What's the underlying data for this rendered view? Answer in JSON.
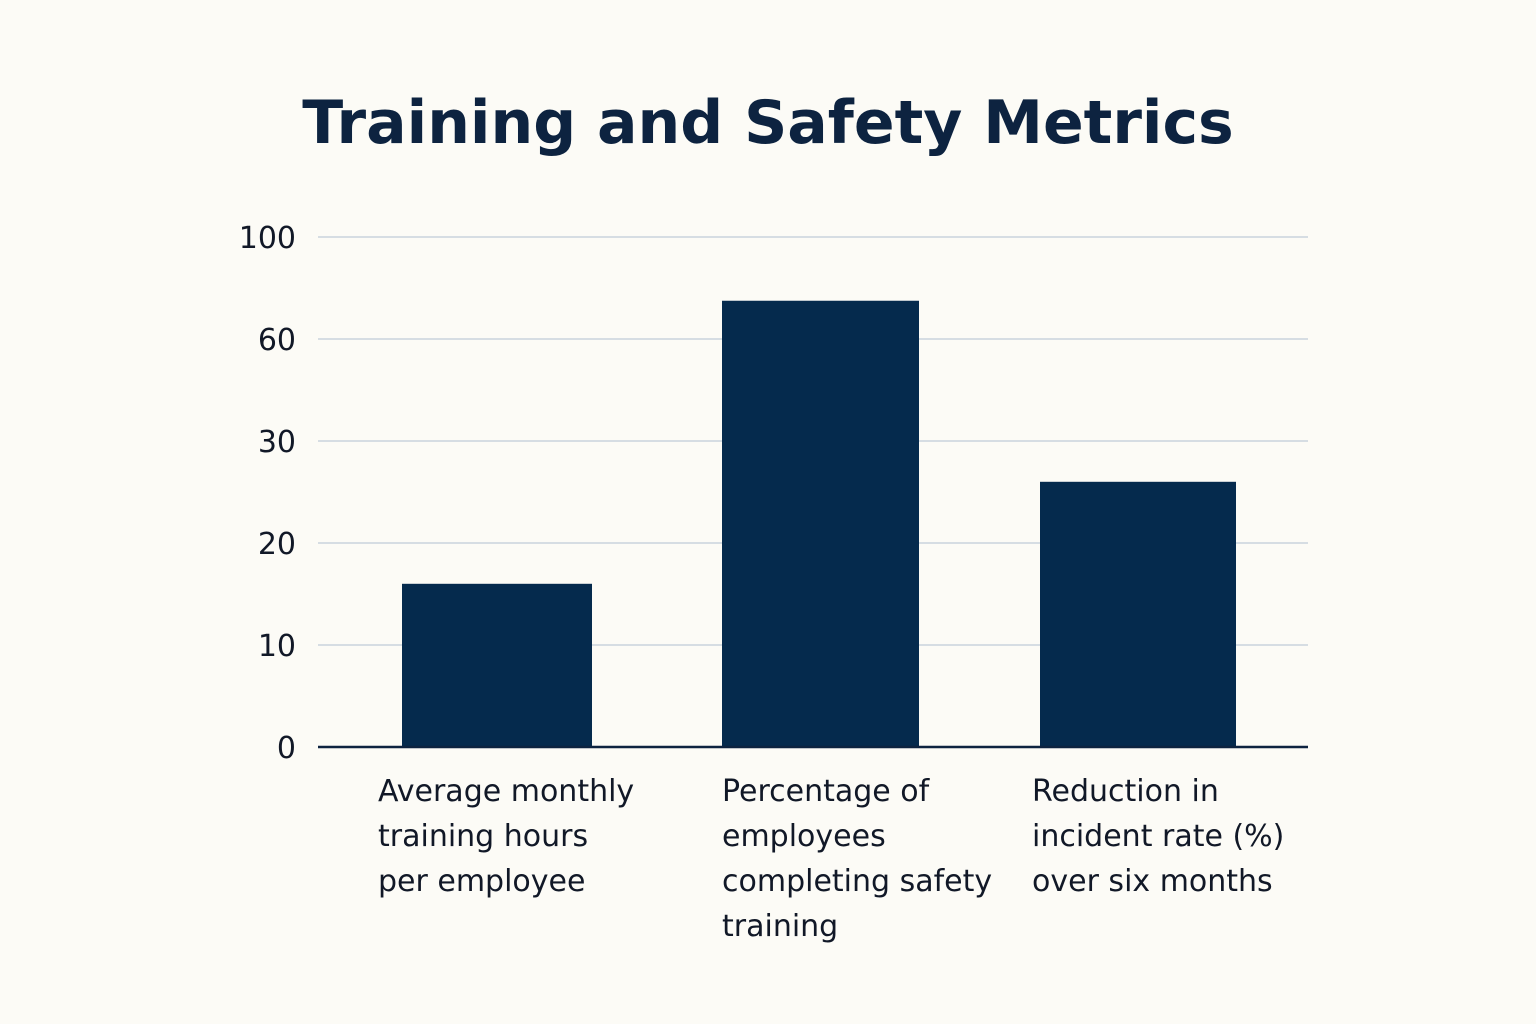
{
  "colors": {
    "background": "#fcfbf6",
    "bar": "#052a4d",
    "title": "#0d2340",
    "text": "#111827",
    "grid": "#d6dde3",
    "axis": "#0d2340"
  },
  "chart_data": {
    "type": "bar",
    "title": "Training and Safety Metrics",
    "xlabel": "",
    "ylabel": "",
    "y_ticks": [
      "100",
      "60",
      "30",
      "20",
      "10",
      "0"
    ],
    "tick_order": [
      0,
      10,
      20,
      30,
      60,
      100
    ],
    "grid": true,
    "legend": "none",
    "categories": [
      "Average monthly training hours per employee",
      "Percentage of employees completing safety training",
      "Reduction in incident rate (%) over six months"
    ],
    "category_lines": [
      [
        "Average monthly",
        "training hours",
        "per employee"
      ],
      [
        "Percentage of",
        "employees",
        "completing safety",
        "training"
      ],
      [
        "Reduction in",
        "incident rate (%)",
        "over six months"
      ]
    ],
    "values": [
      16,
      75,
      26
    ],
    "ylim": [
      0,
      100
    ]
  }
}
